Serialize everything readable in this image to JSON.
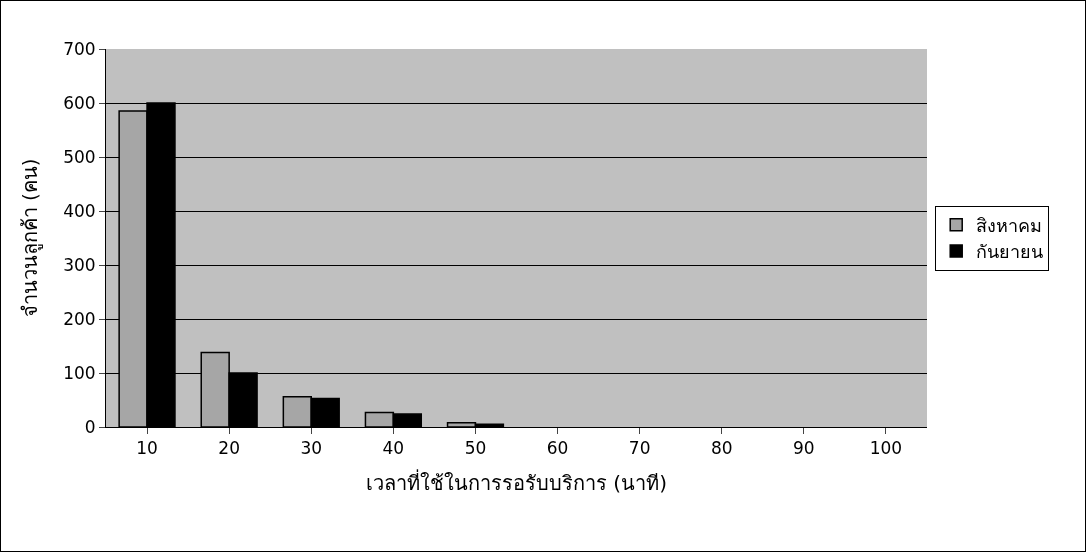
{
  "chart_data": {
    "type": "bar",
    "xlabel": "เวลาที่ใช้ในการรอรับบริการ (นาที)",
    "ylabel": "จำนวนลูกค้า (คน)",
    "categories": [
      "10",
      "20",
      "30",
      "40",
      "50",
      "60",
      "70",
      "80",
      "90",
      "100"
    ],
    "series": [
      {
        "name": "สิงหาคม",
        "color": "#a6a6a6",
        "values": [
          585,
          138,
          56,
          27,
          8,
          0,
          0,
          0,
          0,
          0
        ]
      },
      {
        "name": "กันยายน",
        "color": "#000000",
        "values": [
          600,
          100,
          53,
          24,
          5,
          0,
          0,
          0,
          0,
          0
        ]
      }
    ],
    "ylim": [
      0,
      700
    ],
    "yticks": [
      0,
      100,
      200,
      300,
      400,
      500,
      600,
      700
    ],
    "grid": "y",
    "legend": "right"
  }
}
